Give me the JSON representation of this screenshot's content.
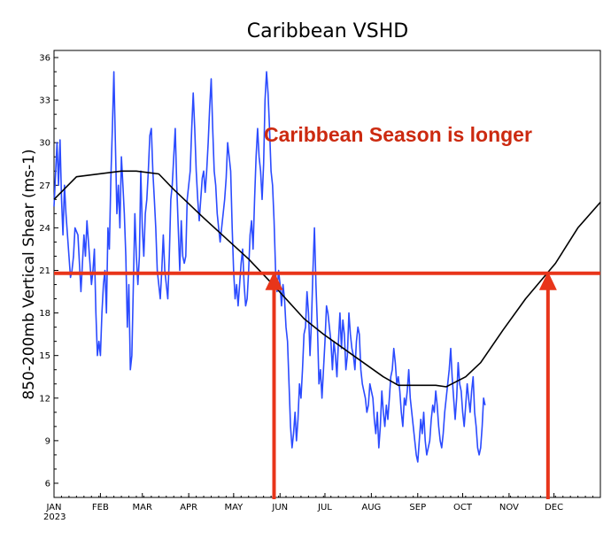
{
  "chart_data": {
    "type": "line",
    "title": "Caribbean VSHD",
    "ylabel": "850-200mb Vertical Shear (ms-1)",
    "xlabel": "",
    "year_label": "2023",
    "ylim": [
      5,
      36.5
    ],
    "xlim_days": [
      0,
      365
    ],
    "yticks": [
      6,
      9,
      12,
      15,
      18,
      21,
      24,
      27,
      30,
      33,
      36
    ],
    "month_ticks": [
      "JAN",
      "FEB",
      "MAR",
      "APR",
      "MAY",
      "JUN",
      "JUL",
      "AUG",
      "SEP",
      "OCT",
      "NOV",
      "DEC"
    ],
    "month_start_days": [
      0,
      31,
      59,
      90,
      120,
      151,
      181,
      212,
      243,
      273,
      304,
      334
    ],
    "series": [
      {
        "color": "#2b4bff",
        "x": [
          0,
          2,
          3,
          4,
          5,
          6,
          7,
          8,
          10,
          11,
          12,
          13,
          14,
          16,
          17,
          18,
          20,
          21,
          22,
          24,
          25,
          26,
          27,
          28,
          29,
          30,
          31,
          32,
          33,
          34,
          35,
          36,
          37,
          38,
          39,
          40,
          41,
          42,
          43,
          44,
          45,
          46,
          47,
          48,
          49,
          50,
          51,
          52,
          53,
          54,
          55,
          56,
          57,
          58,
          59,
          60,
          61,
          62,
          63,
          64,
          65,
          66,
          67,
          68,
          69,
          70,
          71,
          72,
          73,
          74,
          75,
          76,
          77,
          78,
          79,
          80,
          81,
          82,
          83,
          84,
          85,
          86,
          87,
          88,
          89,
          90,
          91,
          92,
          93,
          94,
          95,
          96,
          97,
          98,
          99,
          100,
          101,
          102,
          103,
          104,
          105,
          106,
          107,
          108,
          109,
          110,
          111,
          112,
          113,
          114,
          115,
          116,
          117,
          118,
          119,
          120,
          121,
          122,
          123,
          124,
          125,
          126,
          127,
          128,
          129,
          130,
          131,
          132,
          133,
          134,
          135,
          136,
          137,
          138,
          139,
          140,
          141,
          142,
          143,
          144,
          145,
          146,
          147,
          148,
          149,
          150,
          151,
          152,
          153,
          154,
          155,
          156,
          157,
          158,
          159,
          160,
          161,
          162,
          163,
          164,
          165,
          166,
          167,
          168,
          169,
          170,
          171,
          172,
          173,
          174,
          175,
          176,
          177,
          178,
          179,
          180,
          181,
          182,
          183,
          184,
          185,
          186,
          187,
          188,
          189,
          190,
          191,
          192,
          193,
          194,
          195,
          196,
          197,
          198,
          199,
          200,
          201,
          202,
          203,
          204,
          205,
          206,
          207,
          208,
          209,
          210,
          211,
          212,
          213,
          214,
          215,
          216,
          217,
          218,
          219,
          220,
          221,
          222,
          223,
          224,
          225,
          226,
          227,
          228,
          229,
          230,
          231,
          232,
          233,
          234,
          235,
          236,
          237,
          238,
          239,
          240,
          241,
          242,
          243,
          244,
          245,
          246,
          247,
          248,
          249,
          250,
          251,
          252,
          253,
          254,
          255,
          256,
          257,
          258,
          259,
          260,
          261,
          262,
          263,
          264,
          265,
          266,
          267,
          268,
          269,
          270,
          271,
          272,
          273,
          274,
          275,
          276,
          277,
          278,
          279,
          280,
          281,
          282,
          283,
          284,
          285,
          286,
          287,
          288
        ],
        "y": [
          25.5,
          30,
          27,
          30.2,
          26,
          23.5,
          27,
          25,
          22,
          20.5,
          21,
          22,
          24,
          23.5,
          21.5,
          19.5,
          23.5,
          22,
          24.5,
          21.5,
          20,
          21,
          22.5,
          18,
          15,
          16,
          15,
          18,
          20,
          21,
          18,
          24,
          22.5,
          27.5,
          31,
          35,
          30,
          25,
          27,
          24,
          29,
          27,
          25,
          22,
          17,
          20,
          14,
          15,
          20,
          25,
          22,
          20,
          22,
          28,
          24,
          22,
          25,
          26,
          28,
          30.5,
          31,
          28,
          26,
          24,
          21,
          20,
          19,
          21,
          23.5,
          21,
          20,
          19,
          22,
          26,
          27,
          29,
          31,
          27,
          24,
          21,
          24.5,
          22,
          21.5,
          22,
          26,
          27,
          28,
          31,
          33.5,
          31,
          28,
          26,
          24.5,
          26,
          27.5,
          28,
          26.5,
          28,
          30,
          32.5,
          34.5,
          31,
          28,
          27,
          25,
          24,
          23,
          24,
          25,
          26,
          27.5,
          30,
          29,
          28,
          24,
          21,
          19,
          20,
          18.5,
          20,
          21.5,
          22.5,
          20,
          18.5,
          19,
          21,
          23.5,
          24.5,
          22.5,
          26,
          29,
          31,
          29,
          28,
          26,
          28.5,
          33,
          35,
          33.5,
          31,
          28,
          27,
          24.5,
          21,
          19.5,
          21,
          20,
          18.5,
          20,
          19,
          17,
          16,
          13,
          10,
          8.5,
          9.5,
          11,
          9,
          10.5,
          13,
          12,
          14,
          16.5,
          17,
          19.5,
          18,
          15,
          17.5,
          21,
          24,
          20,
          17,
          13,
          14,
          12,
          14,
          16,
          18.5,
          18,
          17,
          16,
          14,
          16,
          15,
          13.5,
          16,
          18,
          15.5,
          17.5,
          16.5,
          14,
          15,
          18,
          16.5,
          15.5,
          15,
          14,
          16,
          17,
          16.5,
          14,
          13,
          12.5,
          12,
          11,
          11.5,
          13,
          12.5,
          12,
          10.5,
          9.5,
          11,
          8.5,
          10,
          12.5,
          11,
          10,
          11.5,
          10.5,
          12,
          13.5,
          14,
          15.5,
          14.5,
          13,
          13.5,
          12.5,
          11,
          10,
          12,
          11.5,
          12.5,
          14,
          12,
          11,
          10,
          9,
          8,
          7.5,
          9,
          10.5,
          9.5,
          11,
          9,
          8,
          8.5,
          9,
          10.5,
          11.5,
          11,
          12.5,
          11.5,
          10,
          9,
          8.5,
          9.5,
          11,
          12,
          13,
          14,
          15.5,
          13.5,
          12,
          10.5,
          12,
          14.5,
          13,
          12.5,
          11,
          10,
          11.5,
          13,
          12,
          11,
          12.5,
          13.5,
          11,
          10,
          8.5,
          8,
          8.5,
          10,
          12,
          11.5
        ]
      },
      {
        "color": "#000000",
        "x": [
          0,
          15,
          45,
          55,
          70,
          80,
          100,
          130,
          148,
          167,
          180,
          200,
          220,
          230,
          255,
          262,
          275,
          285,
          300,
          315,
          335,
          350,
          365
        ],
        "y": [
          26,
          27.6,
          28,
          28,
          27.8,
          26.7,
          24.7,
          21.8,
          19.8,
          17.6,
          16.5,
          15,
          13.5,
          12.9,
          12.9,
          12.8,
          13.5,
          14.5,
          16.8,
          19,
          21.5,
          24,
          25.8
        ]
      }
    ],
    "threshold_y": 20.8,
    "arrow_days": [
      147,
      330
    ],
    "annotation": "Caribbean Season is longer"
  }
}
